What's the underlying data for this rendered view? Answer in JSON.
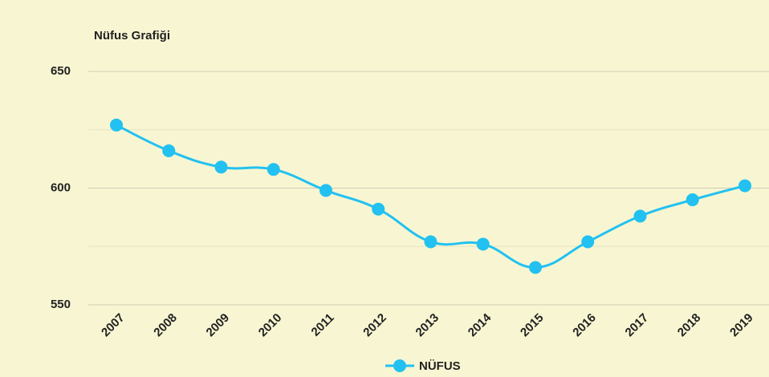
{
  "chart_data": {
    "type": "line",
    "title": "Nüfus Grafiği",
    "categories": [
      "2007",
      "2008",
      "2009",
      "2010",
      "2011",
      "2012",
      "2013",
      "2014",
      "2015",
      "2016",
      "2017",
      "2018",
      "2019"
    ],
    "series": [
      {
        "name": "NÜFUS",
        "color": "#22c1f1",
        "values": [
          627,
          616,
          609,
          608,
          599,
          591,
          577,
          576,
          566,
          577,
          588,
          595,
          601
        ]
      }
    ],
    "ylim": [
      550,
      650
    ],
    "yticks": [
      550,
      600,
      650
    ],
    "minor_yticks": [
      575,
      625
    ],
    "grid": true,
    "legend": "bottom"
  }
}
